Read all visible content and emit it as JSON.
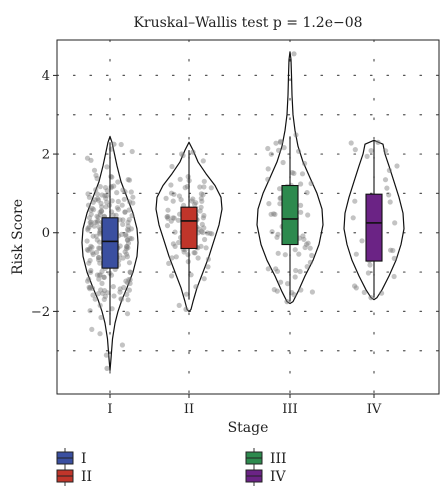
{
  "chart_data": {
    "type": "violin",
    "title": "Kruskal–Wallis test p = 1.2e−08",
    "xlabel": "Stage",
    "ylabel": "Risk Score",
    "categories": [
      "I",
      "II",
      "III",
      "IV"
    ],
    "ylim": [
      -4.1,
      4.9
    ],
    "y_ticks": [
      4,
      2,
      0,
      -2
    ],
    "y_tick_labels": [
      "4",
      "2",
      "0",
      "−2"
    ],
    "grid": "dotted",
    "legend_position": "bottom",
    "groups": [
      {
        "name": "I",
        "color": "#3a4fa0",
        "box": {
          "q1": -0.9,
          "median": -0.22,
          "q3": 0.38,
          "whisker_low": -2.35,
          "whisker_high": 2.3
        },
        "violin_range": [
          -3.5,
          2.45
        ],
        "points_range": [
          -3.45,
          2.25
        ],
        "n_points": 240
      },
      {
        "name": "II",
        "color": "#c0352a",
        "box": {
          "q1": -0.4,
          "median": 0.3,
          "q3": 0.65,
          "whisker_low": -1.7,
          "whisker_high": 2.1
        },
        "violin_range": [
          -2.0,
          2.3
        ],
        "points_range": [
          -1.95,
          2.05
        ],
        "n_points": 95
      },
      {
        "name": "III",
        "color": "#2d8a4e",
        "box": {
          "q1": -0.3,
          "median": 0.35,
          "q3": 1.2,
          "whisker_low": -1.75,
          "whisker_high": 2.45
        },
        "violin_range": [
          -1.8,
          4.6
        ],
        "points_range": [
          -1.75,
          4.55
        ],
        "n_points": 70
      },
      {
        "name": "IV",
        "color": "#6b2385",
        "box": {
          "q1": -0.72,
          "median": 0.25,
          "q3": 0.98,
          "whisker_low": -1.65,
          "whisker_high": 2.35
        },
        "violin_range": [
          -1.7,
          2.35
        ],
        "points_range": [
          -1.65,
          2.3
        ],
        "n_points": 30
      }
    ]
  }
}
